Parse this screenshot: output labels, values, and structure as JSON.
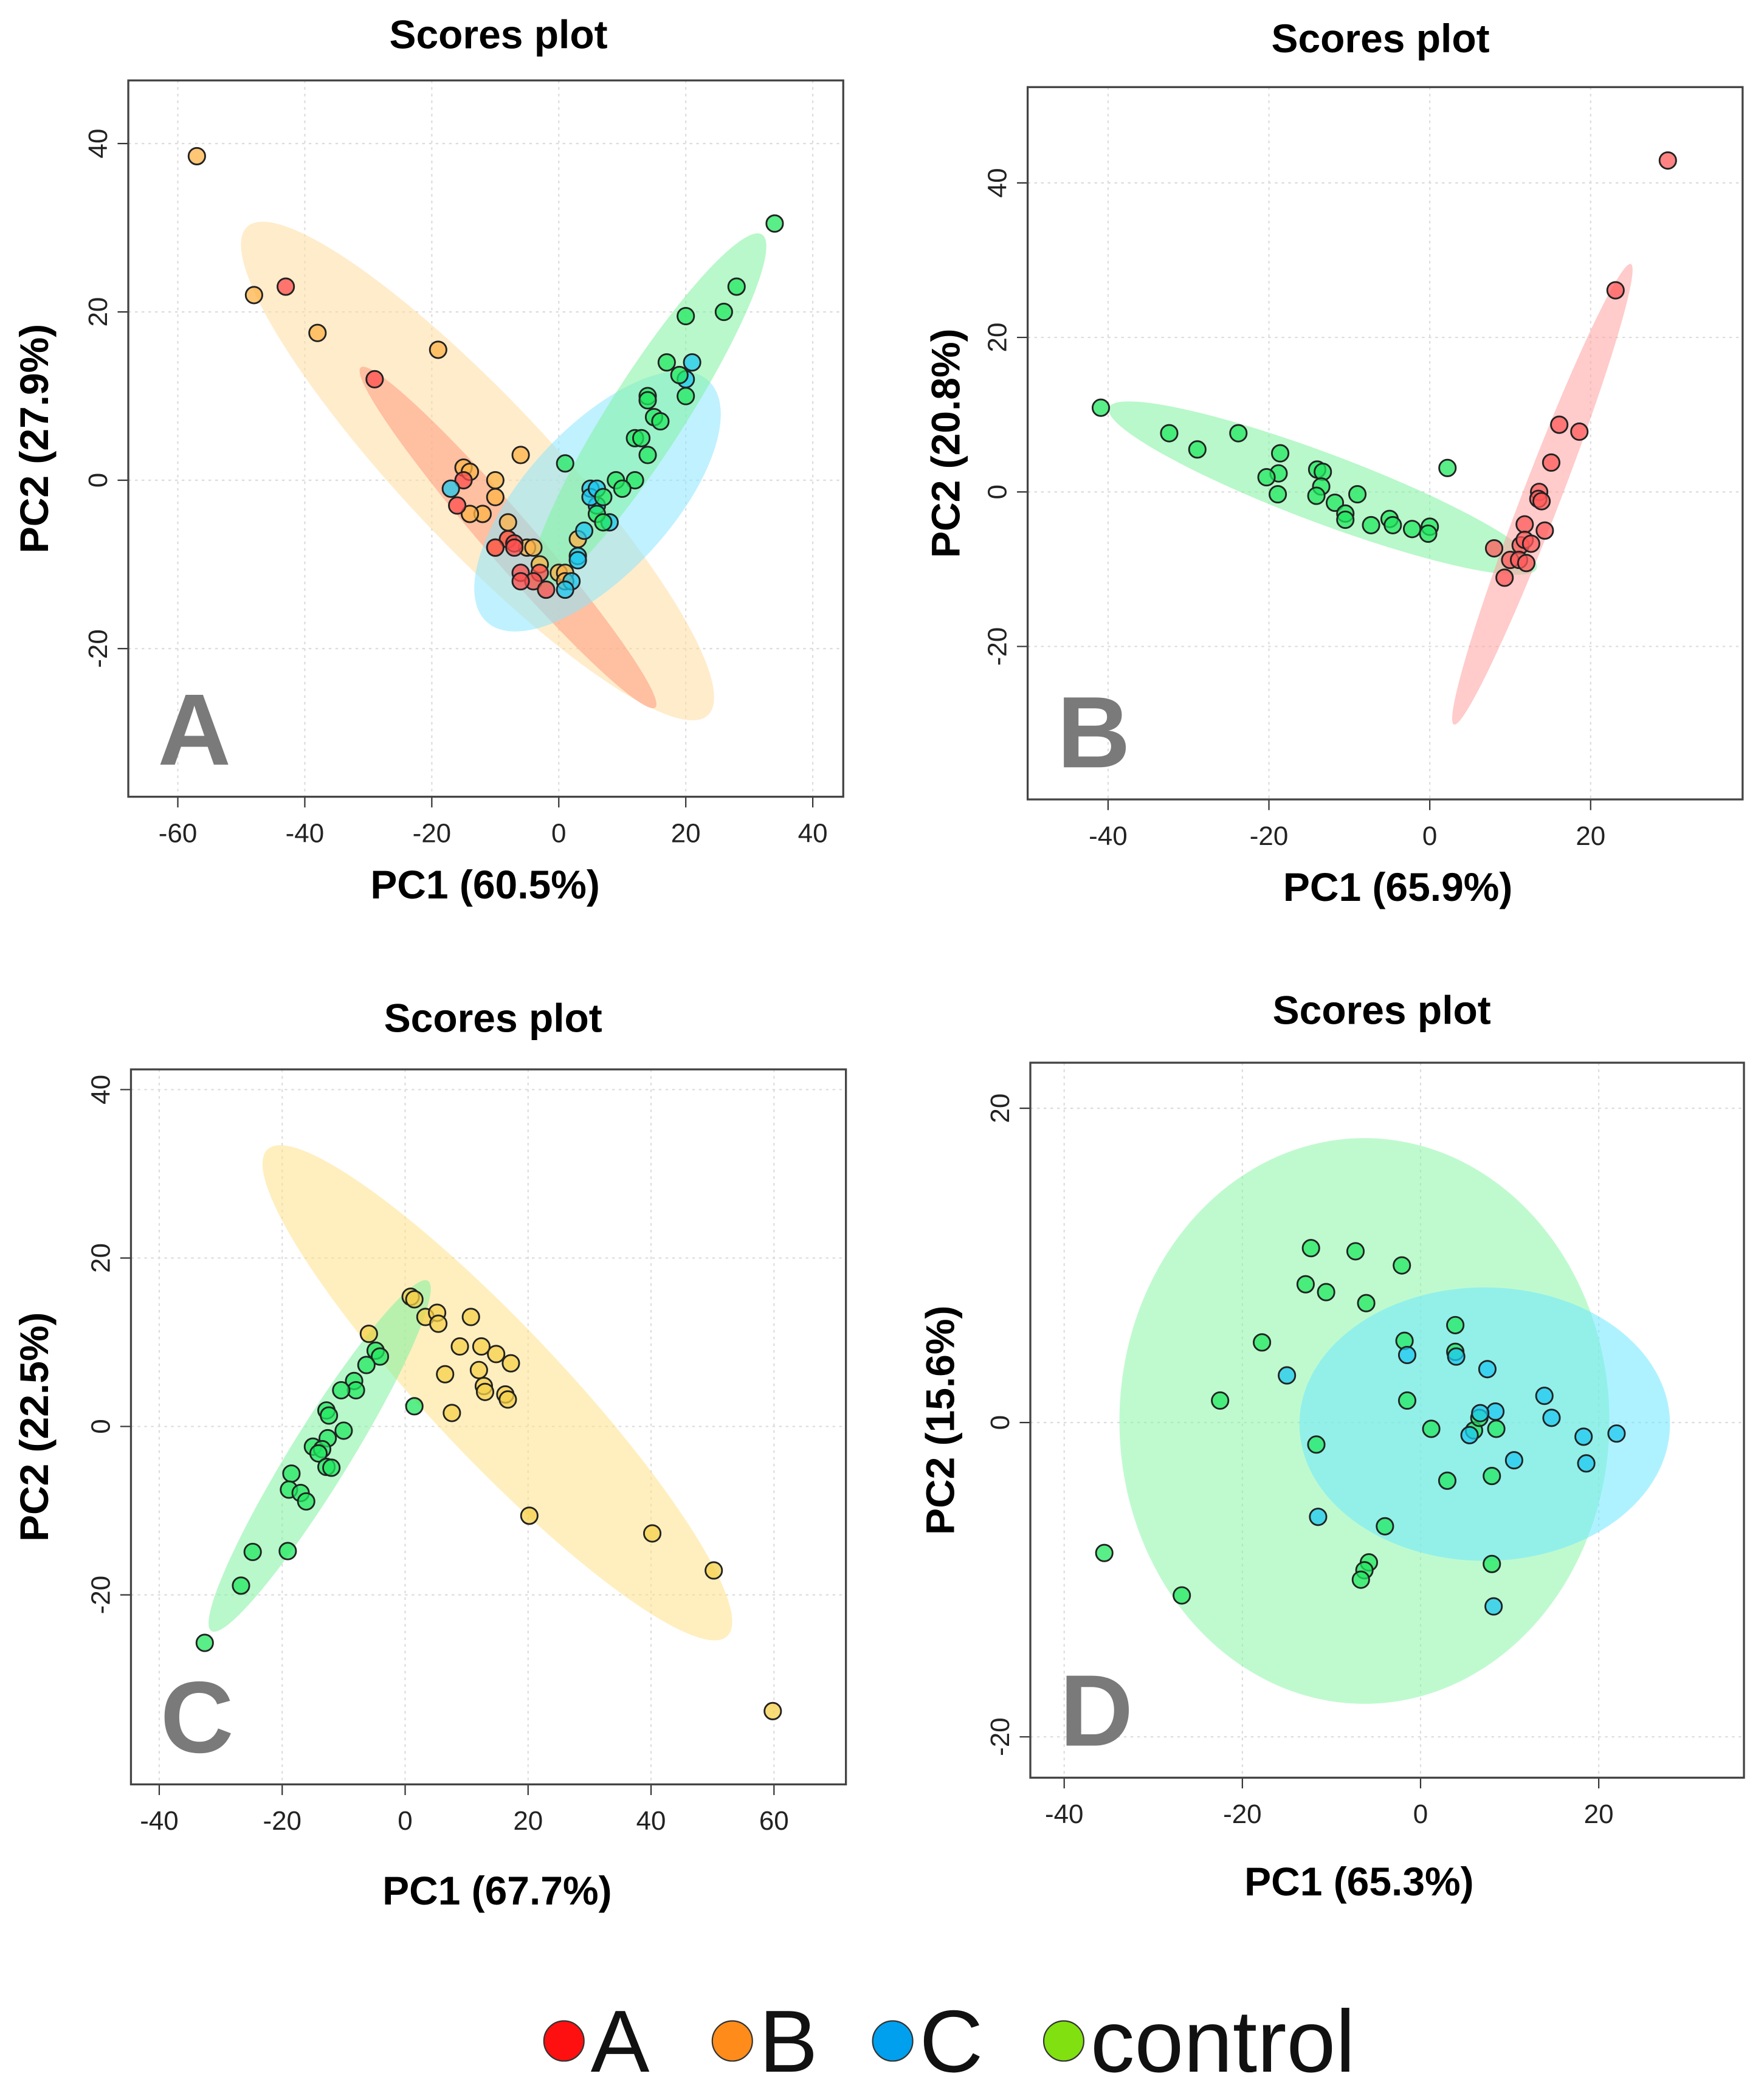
{
  "chart_data": [
    {
      "type": "scatter",
      "panel_letter": "A",
      "title": "Scores plot",
      "xlabel": "PC1 (60.5%)",
      "ylabel": "PC2 (27.9%)",
      "xlim": [
        -67.8,
        44.8
      ],
      "ylim": [
        -37.6,
        47.5
      ],
      "xticks": [
        -60,
        -40,
        -20,
        0,
        20,
        40
      ],
      "yticks": [
        40,
        20,
        0,
        -20
      ],
      "grid": true,
      "series": [
        {
          "name": "B",
          "color": "#ffb347",
          "ellipse_color": "#ffdca0",
          "ellipse": {
            "center": [
              -12.8,
              1.1
            ],
            "axis1": [
              36.3,
              -29.0
            ],
            "axis2": [
              8.4,
              6.0
            ]
          },
          "points": [
            [
              -57,
              38.5
            ],
            [
              -48,
              22
            ],
            [
              -38,
              17.5
            ],
            [
              -19,
              15.5
            ],
            [
              -6,
              3
            ],
            [
              -15,
              1.5
            ],
            [
              -14,
              1
            ],
            [
              -10,
              0
            ],
            [
              -10,
              -2
            ],
            [
              -12,
              -4
            ],
            [
              -14,
              -4
            ],
            [
              -8,
              -5
            ],
            [
              -10,
              -8
            ],
            [
              -5,
              -8
            ],
            [
              -4,
              -8
            ],
            [
              -3,
              -10
            ],
            [
              0,
              -11
            ],
            [
              1,
              -11
            ],
            [
              -8,
              -7
            ],
            [
              3,
              -7
            ],
            [
              1,
              -12
            ]
          ]
        },
        {
          "name": "A",
          "color": "#ff4d4d",
          "ellipse_color": "#ff9a80",
          "ellipse": {
            "center": [
              -8,
              -6.8
            ],
            "axis1": [
              23.2,
              -20.2
            ],
            "axis2": [
              2.9,
              1.9
            ]
          },
          "points": [
            [
              -43,
              23
            ],
            [
              -29,
              12
            ],
            [
              -15,
              0
            ],
            [
              -16,
              -3
            ],
            [
              -8,
              -7
            ],
            [
              -7,
              -7.5
            ],
            [
              -10,
              -8
            ],
            [
              -6,
              -11
            ],
            [
              -3,
              -11
            ],
            [
              -4,
              -12
            ],
            [
              -2,
              -13
            ],
            [
              -6,
              -12
            ],
            [
              -7,
              -8
            ]
          ]
        },
        {
          "name": "C",
          "color": "#1ec8f0",
          "ellipse_color": "#8de6ff",
          "ellipse": {
            "center": [
              6.1,
              -2.5
            ],
            "axis1": [
              17.5,
              14.3
            ],
            "axis2": [
              8.4,
              -5.9
            ]
          },
          "points": [
            [
              -17,
              -1
            ],
            [
              5,
              -1
            ],
            [
              6,
              -3
            ],
            [
              4,
              -6
            ],
            [
              3,
              -9
            ],
            [
              2,
              -12
            ],
            [
              1,
              -13
            ],
            [
              8,
              -5
            ],
            [
              21,
              14
            ],
            [
              20,
              12
            ],
            [
              5,
              -2
            ],
            [
              6,
              -1
            ],
            [
              3,
              -9.5
            ]
          ]
        },
        {
          "name": "control",
          "color": "#22e860",
          "ellipse_color": "#7ef29e",
          "ellipse": {
            "center": [
              14.1,
              8.1
            ],
            "axis1": [
              17.9,
              21.1
            ],
            "axis2": [
              5.0,
              -2.4
            ]
          },
          "points": [
            [
              34,
              30.5
            ],
            [
              28,
              23
            ],
            [
              26,
              20
            ],
            [
              20,
              19.5
            ],
            [
              17,
              14
            ],
            [
              19,
              12.5
            ],
            [
              20,
              10
            ],
            [
              14,
              10
            ],
            [
              15,
              7.5
            ],
            [
              16,
              7
            ],
            [
              12,
              5
            ],
            [
              14,
              3
            ],
            [
              12,
              0
            ],
            [
              9,
              0
            ],
            [
              7,
              -2
            ],
            [
              6,
              -4
            ],
            [
              1,
              2
            ],
            [
              7,
              -5
            ],
            [
              10,
              -1
            ],
            [
              13,
              5
            ],
            [
              14,
              9.5
            ]
          ]
        }
      ]
    },
    {
      "type": "scatter",
      "panel_letter": "B",
      "title": "Scores plot",
      "xlabel": "PC1 (65.9%)",
      "ylabel": "PC2 (20.8%)",
      "xlim": [
        -50,
        38.9
      ],
      "ylim": [
        -39.8,
        52.4
      ],
      "xticks": [
        -40,
        -20,
        0,
        20
      ],
      "yticks": [
        40,
        20,
        0,
        -20
      ],
      "grid": true,
      "series": [
        {
          "name": "control",
          "color": "#22e860",
          "ellipse_color": "#7ef29e",
          "ellipse": {
            "center": [
              -13.3,
              0.5
            ],
            "axis1": [
              26.6,
              -10.4
            ],
            "axis2": [
              -1.5,
              -4.2
            ]
          },
          "points": [
            [
              -40.9,
              10.9
            ],
            [
              -32.4,
              7.6
            ],
            [
              -28.9,
              5.5
            ],
            [
              -23.8,
              7.6
            ],
            [
              -18.6,
              5
            ],
            [
              -18.8,
              2.4
            ],
            [
              -20.3,
              1.9
            ],
            [
              -18.9,
              -0.3
            ],
            [
              -14,
              2.9
            ],
            [
              -13.3,
              2.6
            ],
            [
              -13.5,
              0.7
            ],
            [
              -14.1,
              -0.5
            ],
            [
              -11.8,
              -1.4
            ],
            [
              -10.5,
              -2.8
            ],
            [
              -10.5,
              -3.6
            ],
            [
              -9,
              -0.3
            ],
            [
              -7.3,
              -4.3
            ],
            [
              -5,
              -3.5
            ],
            [
              -4.6,
              -4.3
            ],
            [
              -2.2,
              -4.8
            ],
            [
              0,
              -4.5
            ],
            [
              -0.2,
              -5.4
            ],
            [
              2.2,
              3.1
            ]
          ]
        },
        {
          "name": "A",
          "color": "#ff5a5a",
          "ellipse_color": "#ffa0a0",
          "ellipse": {
            "center": [
              14,
              -0.3
            ],
            "axis1": [
              11,
              29.8
            ],
            "axis2": [
              2.2,
              -0.9
            ]
          },
          "points": [
            [
              29.6,
              42.9
            ],
            [
              23.1,
              26.1
            ],
            [
              16.1,
              8.7
            ],
            [
              18.6,
              7.8
            ],
            [
              15.1,
              3.8
            ],
            [
              13.6,
              0
            ],
            [
              13.5,
              -0.9
            ],
            [
              13.9,
              -1.2
            ],
            [
              11.8,
              -4.2
            ],
            [
              14.3,
              -5
            ],
            [
              8,
              -7.3
            ],
            [
              11.3,
              -6.9
            ],
            [
              11.8,
              -6.2
            ],
            [
              12.6,
              -6.7
            ],
            [
              10,
              -8.8
            ],
            [
              9.3,
              -11.1
            ],
            [
              11.1,
              -8.8
            ],
            [
              12,
              -9.2
            ]
          ]
        }
      ]
    },
    {
      "type": "scatter",
      "panel_letter": "C",
      "title": "Scores plot",
      "xlabel": "PC1 (67.7%)",
      "ylabel": "PC2 (22.5%)",
      "xlim": [
        -44.6,
        71.7
      ],
      "ylim": [
        -42.5,
        42.4
      ],
      "xticks": [
        -40,
        -20,
        0,
        20,
        40,
        60
      ],
      "yticks": [
        40,
        20,
        0,
        -20
      ],
      "grid": true,
      "series": [
        {
          "name": "B",
          "color": "#f5d04a",
          "ellipse_color": "#ffe28a",
          "ellipse": {
            "center": [
              15,
              4
            ],
            "axis1": [
              37.4,
              -28.9
            ],
            "axis2": [
              7.8,
              5.4
            ]
          },
          "points": [
            [
              0.9,
              15.4
            ],
            [
              1.5,
              15.1
            ],
            [
              3.3,
              13
            ],
            [
              5.2,
              13.5
            ],
            [
              5.4,
              12.2
            ],
            [
              10.7,
              13
            ],
            [
              8.9,
              9.5
            ],
            [
              12.4,
              9.5
            ],
            [
              14.8,
              8.6
            ],
            [
              17.2,
              7.5
            ],
            [
              12,
              6.7
            ],
            [
              6.5,
              6.2
            ],
            [
              12.8,
              4.8
            ],
            [
              13,
              4.1
            ],
            [
              16.3,
              3.8
            ],
            [
              16.7,
              3.2
            ],
            [
              7.6,
              1.6
            ],
            [
              20.2,
              -10.6
            ],
            [
              40.2,
              -12.7
            ],
            [
              50.2,
              -17.1
            ],
            [
              59.8,
              -33.8
            ],
            [
              -5.9,
              11
            ]
          ]
        },
        {
          "name": "control",
          "color": "#22e860",
          "ellipse_color": "#7ef29e",
          "ellipse": {
            "center": [
              -13.9,
              -3.5
            ],
            "axis1": [
              17.6,
              20.8
            ],
            "axis2": [
              4.1,
              -1.8
            ]
          },
          "points": [
            [
              -4.8,
              9
            ],
            [
              -4.1,
              8.3
            ],
            [
              -6.3,
              7.3
            ],
            [
              -8.3,
              5.4
            ],
            [
              -8,
              4.3
            ],
            [
              -10.4,
              4.3
            ],
            [
              -12.8,
              1.9
            ],
            [
              -12.4,
              1.3
            ],
            [
              -10,
              -0.5
            ],
            [
              -12.6,
              -1.4
            ],
            [
              -15,
              -2.4
            ],
            [
              -13.5,
              -2.7
            ],
            [
              -14.1,
              -3.2
            ],
            [
              -12.8,
              -4.8
            ],
            [
              -12,
              -4.9
            ],
            [
              -18.5,
              -5.6
            ],
            [
              -18.9,
              -7.5
            ],
            [
              -17,
              -7.9
            ],
            [
              -16.1,
              -8.9
            ],
            [
              -24.8,
              -14.9
            ],
            [
              -19.1,
              -14.8
            ],
            [
              -26.7,
              -18.9
            ],
            [
              -32.6,
              -25.7
            ],
            [
              1.5,
              2.4
            ]
          ]
        }
      ]
    },
    {
      "type": "scatter",
      "panel_letter": "D",
      "title": "Scores plot",
      "xlabel": "PC1 (65.3%)",
      "ylabel": "PC2 (15.6%)",
      "xlim": [
        -43.8,
        36.3
      ],
      "ylim": [
        -22.6,
        22.9
      ],
      "xticks": [
        -40,
        -20,
        0,
        20
      ],
      "yticks": [
        20,
        0,
        -20
      ],
      "grid": true,
      "series": [
        {
          "name": "control",
          "color": "#22e860",
          "ellipse_color": "#8af5a8",
          "ellipse": {
            "center": [
              -6.3,
              0.1
            ],
            "axis1": [
              27.5,
              0
            ],
            "axis2": [
              0,
              18.0
            ]
          },
          "points": [
            [
              -35.5,
              -8.3
            ],
            [
              -26.8,
              -11
            ],
            [
              -22.5,
              1.4
            ],
            [
              -17.8,
              5.1
            ],
            [
              -12.3,
              11.1
            ],
            [
              -12.9,
              8.8
            ],
            [
              -10.6,
              8.3
            ],
            [
              -7.3,
              10.9
            ],
            [
              -2.1,
              10
            ],
            [
              -6.1,
              7.6
            ],
            [
              -1.8,
              5.2
            ],
            [
              -1.5,
              1.4
            ],
            [
              -11.7,
              -1.4
            ],
            [
              1.2,
              -0.4
            ],
            [
              3.9,
              6.2
            ],
            [
              3.9,
              4.5
            ],
            [
              3,
              -3.7
            ],
            [
              -4,
              -6.6
            ],
            [
              -5.8,
              -8.9
            ],
            [
              -6.3,
              -9.4
            ],
            [
              -6.7,
              -10
            ],
            [
              8,
              -3.4
            ],
            [
              8,
              -9
            ],
            [
              6,
              -0.5
            ],
            [
              8.5,
              -0.4
            ],
            [
              6.6,
              0.3
            ]
          ]
        },
        {
          "name": "C",
          "color": "#1ec8f0",
          "ellipse_color": "#6ee8ff",
          "ellipse": {
            "center": [
              7.2,
              -0.1
            ],
            "axis1": [
              20.8,
              0
            ],
            "axis2": [
              0,
              8.7
            ]
          },
          "points": [
            [
              -15,
              3
            ],
            [
              -1.5,
              4.3
            ],
            [
              4,
              4.2
            ],
            [
              7.5,
              3.4
            ],
            [
              13.9,
              1.7
            ],
            [
              14.7,
              0.3
            ],
            [
              18.3,
              -0.9
            ],
            [
              22,
              -0.7
            ],
            [
              18.6,
              -2.6
            ],
            [
              10.5,
              -2.4
            ],
            [
              8.4,
              0.7
            ],
            [
              6.7,
              0.6
            ],
            [
              5.5,
              -0.8
            ],
            [
              -11.5,
              -6
            ],
            [
              8.2,
              -11.7
            ]
          ]
        }
      ]
    }
  ],
  "legend": {
    "placement": "bottom",
    "items": [
      {
        "label": "A",
        "color": "#ff1010"
      },
      {
        "label": "B",
        "color": "#ff8c1a"
      },
      {
        "label": "C",
        "color": "#00a0ee"
      },
      {
        "label": "control",
        "color": "#80e010"
      }
    ]
  }
}
